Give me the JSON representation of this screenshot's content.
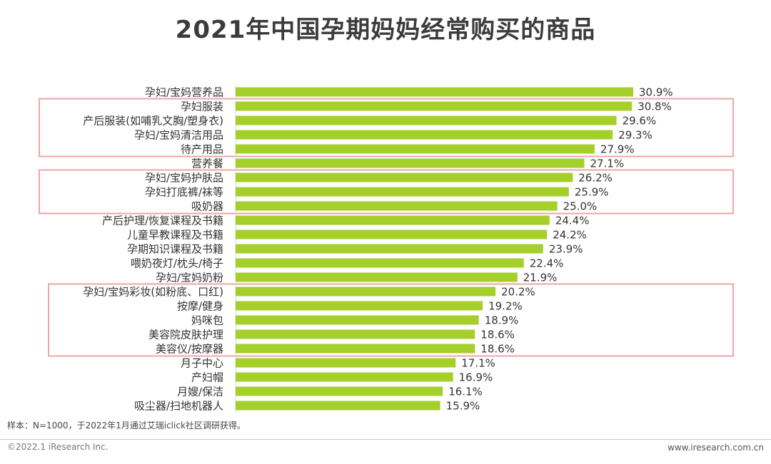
{
  "chart_data": {
    "type": "bar",
    "orientation": "horizontal",
    "title": "2021年中国孕期妈妈经常购买的商品",
    "categories": [
      "孕妇/宝妈营养品",
      "孕妇服装",
      "产后服装(如哺乳文胸/塑身衣)",
      "孕妇/宝妈清洁用品",
      "待产用品",
      "营养餐",
      "孕妇/宝妈护肤品",
      "孕妇打底裤/袜等",
      "吸奶器",
      "产后护理/恢复课程及书籍",
      "儿童早教课程及书籍",
      "孕期知识课程及书籍",
      "喂奶夜灯/枕头/椅子",
      "孕妇/宝妈奶粉",
      "孕妇/宝妈彩妆(如粉底、口红)",
      "按摩/健身",
      "妈咪包",
      "美容院皮肤护理",
      "美容仪/按摩器",
      "月子中心",
      "产妇帽",
      "月嫂/保洁",
      "吸尘器/扫地机器人"
    ],
    "values": [
      30.9,
      30.8,
      29.6,
      29.3,
      27.9,
      27.1,
      26.2,
      25.9,
      25.0,
      24.4,
      24.2,
      23.9,
      22.4,
      21.9,
      20.2,
      19.2,
      18.9,
      18.6,
      18.6,
      17.1,
      16.9,
      16.1,
      15.9
    ],
    "value_labels": [
      "30.9%",
      "30.8%",
      "29.6%",
      "29.3%",
      "27.9%",
      "27.1%",
      "26.2%",
      "25.9%",
      "25.0%",
      "24.4%",
      "24.2%",
      "23.9%",
      "22.4%",
      "21.9%",
      "20.2%",
      "19.2%",
      "18.9%",
      "18.6%",
      "18.6%",
      "17.1%",
      "16.9%",
      "16.1%",
      "15.9%"
    ],
    "unit": "%",
    "xlim": [
      0,
      30.9
    ],
    "highlight_groups": [
      [
        1,
        4
      ],
      [
        6,
        8
      ],
      [
        14,
        18
      ]
    ],
    "bar_color": "#a5cf2b",
    "highlight_color": "#f0a5a5"
  },
  "note": "样本：N=1000，于2022年1月通过艾瑞iclick社区调研获得。",
  "copyright": "©2022.1 iResearch Inc.",
  "website": "www.iresearch.com.cn"
}
